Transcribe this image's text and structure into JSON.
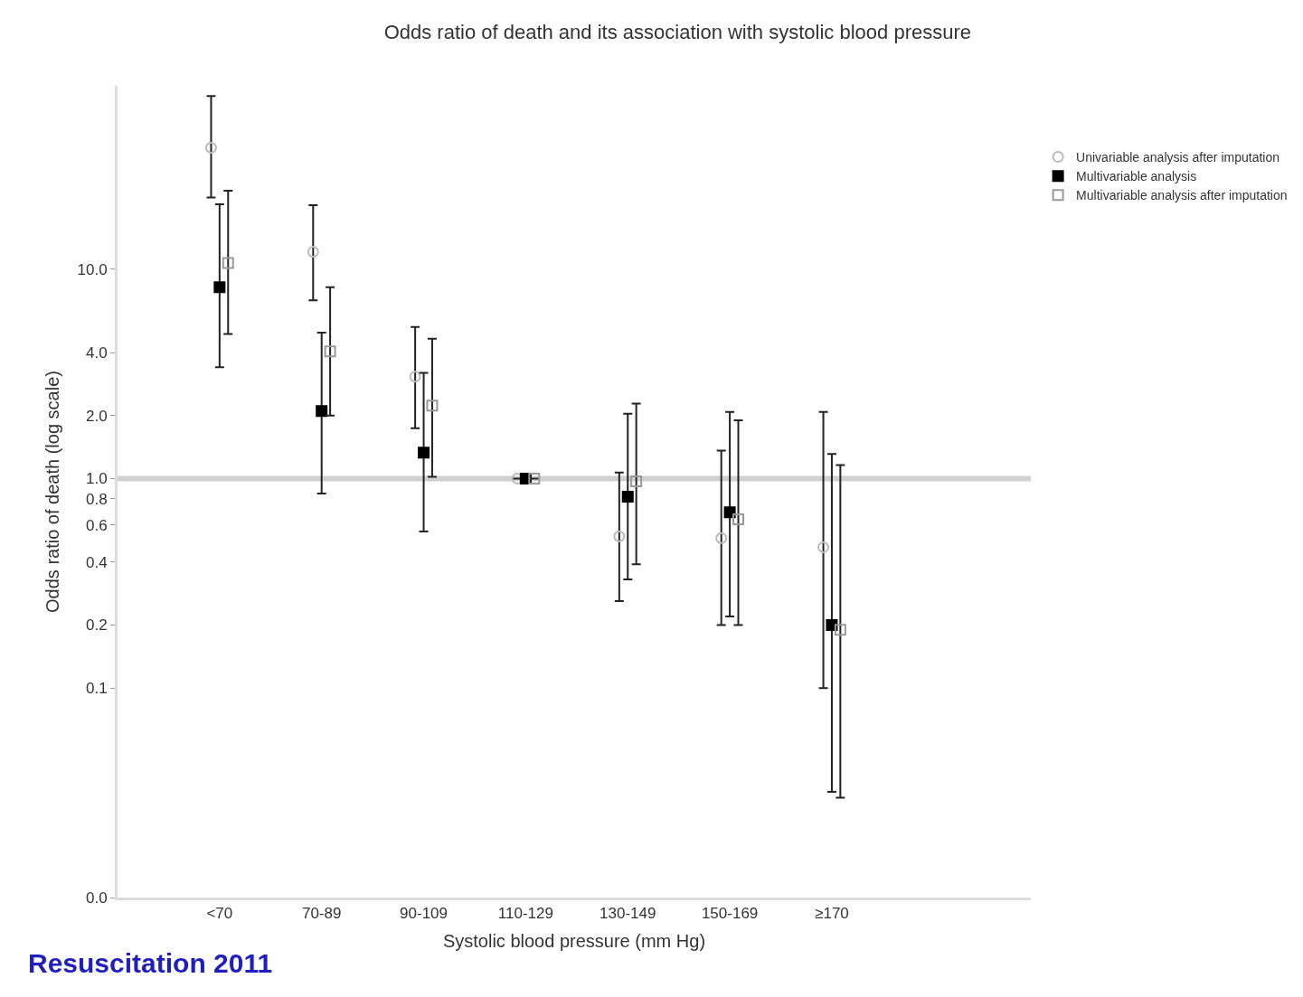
{
  "chart_data": {
    "type": "scatter",
    "title": "Odds ratio of death and its association with systolic blood pressure",
    "xlabel": "Systolic blood pressure (mm Hg)",
    "ylabel": "Odds ratio of death (log scale)",
    "categories": [
      "<70",
      "70-89",
      "90-109",
      "110-129",
      "130-149",
      "150-169",
      "≥170"
    ],
    "log": true,
    "ylim": [
      0.01,
      75
    ],
    "yticks": [
      {
        "value": 0.01,
        "label": "0.0"
      },
      {
        "value": 0.1,
        "label": "0.1"
      },
      {
        "value": 0.2,
        "label": "0.2"
      },
      {
        "value": 0.4,
        "label": "0.4"
      },
      {
        "value": 0.6,
        "label": "0.6"
      },
      {
        "value": 0.8,
        "label": "0.8"
      },
      {
        "value": 1,
        "label": "1.0"
      },
      {
        "value": 2,
        "label": "2.0"
      },
      {
        "value": 4,
        "label": "4.0"
      },
      {
        "value": 10,
        "label": "10.0"
      }
    ],
    "grid": false,
    "legend": "top right",
    "series": [
      {
        "name": "Univariable analysis after imputation",
        "color": "#bbbbbb",
        "marker": "circle",
        "values": [
          38,
          12.1,
          3.07,
          1.0,
          0.53,
          0.52,
          0.47
        ],
        "errors": [
          [
            22,
            67
          ],
          [
            7.1,
            20.2
          ],
          [
            1.74,
            5.3
          ],
          null,
          [
            0.26,
            1.07
          ],
          [
            0.2,
            1.36
          ],
          [
            0.1,
            2.08
          ]
        ]
      },
      {
        "name": "Multivariable analysis",
        "color": "#000000",
        "marker": "square",
        "values": [
          8.2,
          2.1,
          1.33,
          1.0,
          0.82,
          0.69,
          0.2
        ],
        "errors": [
          [
            3.4,
            20.4
          ],
          [
            0.85,
            4.98
          ],
          [
            0.56,
            3.2
          ],
          null,
          [
            0.33,
            2.04
          ],
          [
            0.22,
            2.08
          ],
          [
            0.032,
            1.31
          ]
        ]
      },
      {
        "name": "Multivariable analysis after imputation",
        "color": "#999999",
        "marker": "square",
        "values": [
          10.7,
          4.05,
          2.23,
          1.0,
          0.97,
          0.64,
          0.19
        ],
        "errors": [
          [
            4.9,
            23.7
          ],
          [
            2.0,
            8.2
          ],
          [
            1.02,
            4.65
          ],
          null,
          [
            0.39,
            2.28
          ],
          [
            0.2,
            1.9
          ],
          [
            0.03,
            1.16
          ]
        ]
      }
    ],
    "ref_lines": [
      {
        "axis": "y",
        "value": 1,
        "color": "#d0d0d0"
      }
    ],
    "annotations": [
      "Resuscitation 2011"
    ]
  }
}
